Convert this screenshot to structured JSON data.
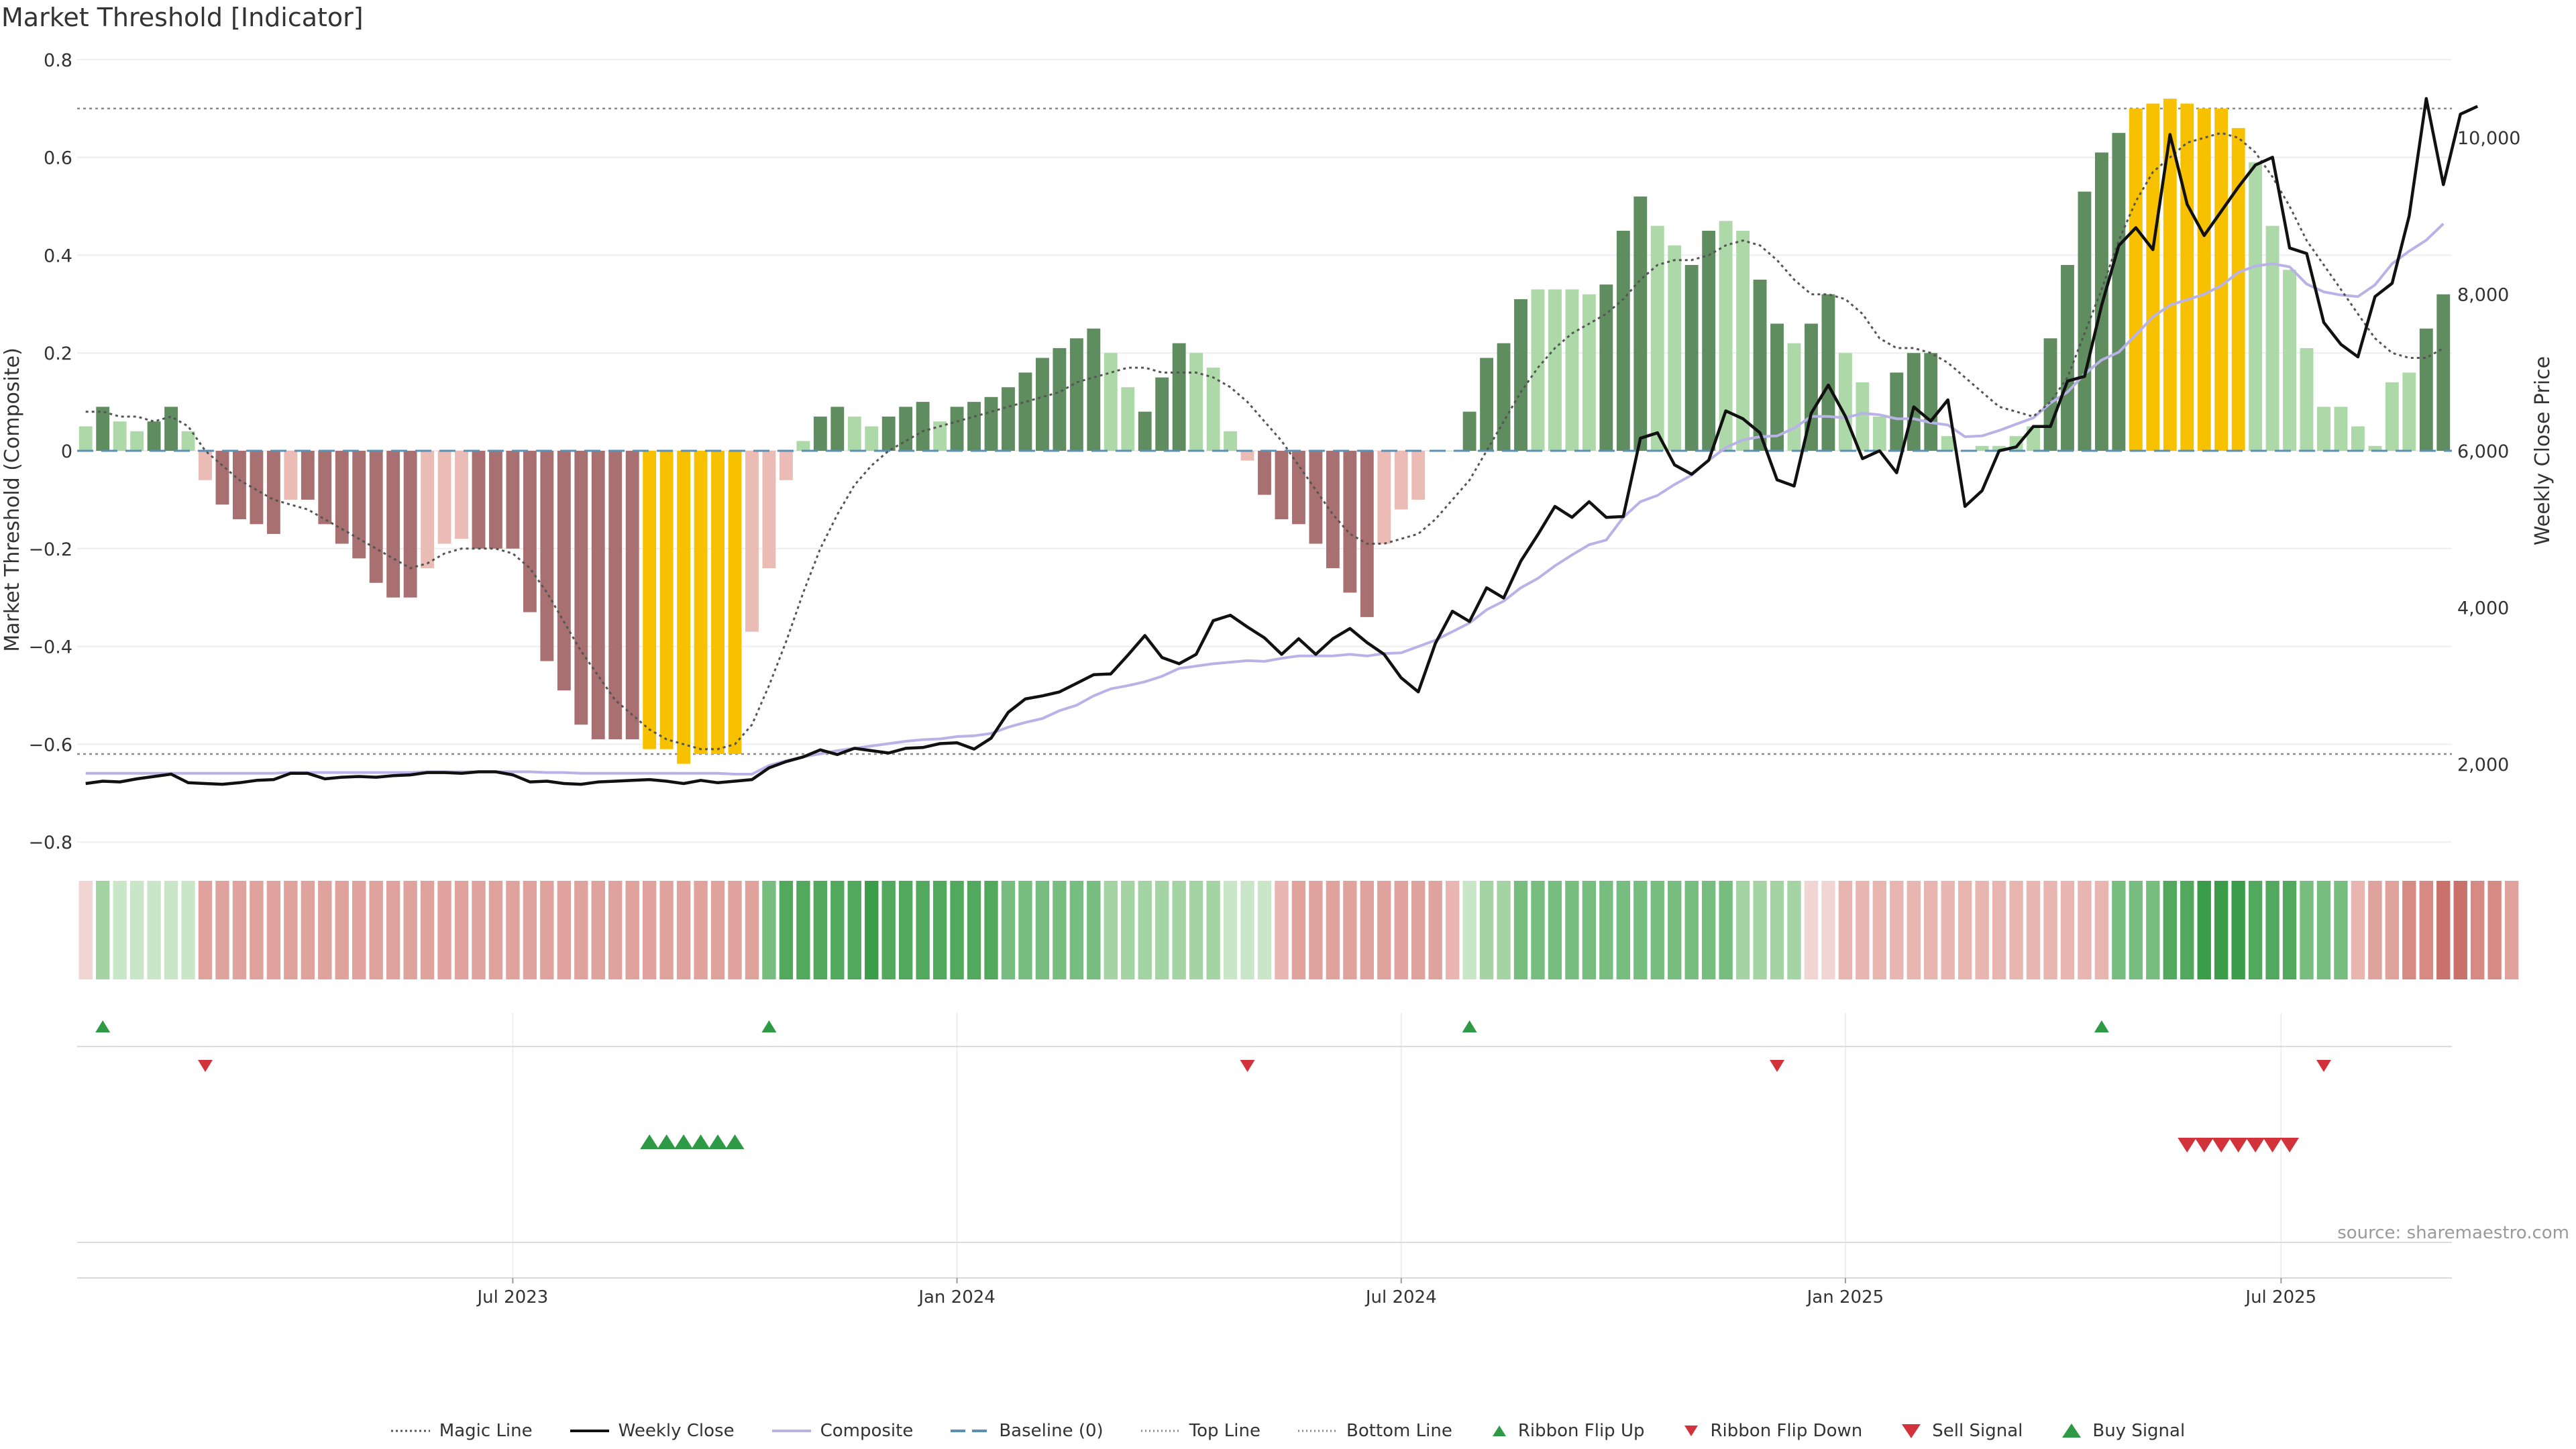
{
  "chart_data": {
    "type": "bar",
    "title": "Market Threshold [Indicator]",
    "ylabel": "Market Threshold (Composite)",
    "y2label": "Weekly Close Price",
    "ylim": [
      -0.8,
      0.8
    ],
    "y2lim": [
      1000,
      11000
    ],
    "yticks": [
      0.8,
      0.6,
      0.4,
      0.2,
      0,
      -0.2,
      -0.4,
      -0.6,
      -0.8
    ],
    "ytick_labels": [
      "0.8",
      "0.6",
      "0.4",
      "0.2",
      "0",
      "−0.2",
      "−0.4",
      "−0.6",
      "−0.8"
    ],
    "y2ticks": [
      10000,
      8000,
      6000,
      4000,
      2000
    ],
    "y2tick_labels": [
      "10,000",
      "8,000",
      "6,000",
      "4,000",
      "2,000"
    ],
    "xticks": [
      "Jul 2023",
      "Jan 2024",
      "Jul 2024",
      "Jan 2025",
      "Jul 2025"
    ],
    "xtick_weeks": [
      25.5,
      51.5,
      77.5,
      103.5,
      129
    ],
    "top_line": 0.7,
    "bottom_line": -0.62,
    "composite": [
      0.05,
      0.09,
      0.06,
      0.04,
      0.06,
      0.09,
      0.04,
      -0.06,
      -0.11,
      -0.14,
      -0.15,
      -0.17,
      -0.1,
      -0.1,
      -0.15,
      -0.19,
      -0.22,
      -0.27,
      -0.3,
      -0.3,
      -0.24,
      -0.19,
      -0.18,
      -0.2,
      -0.2,
      -0.2,
      -0.33,
      -0.43,
      -0.49,
      -0.56,
      -0.59,
      -0.59,
      -0.59,
      -0.61,
      -0.61,
      -0.64,
      -0.62,
      -0.62,
      -0.62,
      -0.37,
      -0.24,
      -0.06,
      0.02,
      0.07,
      0.09,
      0.07,
      0.05,
      0.07,
      0.09,
      0.1,
      0.06,
      0.09,
      0.1,
      0.11,
      0.13,
      0.16,
      0.19,
      0.21,
      0.23,
      0.25,
      0.2,
      0.13,
      0.08,
      0.15,
      0.22,
      0.2,
      0.17,
      0.04,
      -0.02,
      -0.09,
      -0.14,
      -0.15,
      -0.19,
      -0.24,
      -0.29,
      -0.34,
      -0.19,
      -0.12,
      -0.1,
      0.0,
      0.0,
      0.08,
      0.19,
      0.22,
      0.31,
      0.33,
      0.33,
      0.33,
      0.32,
      0.34,
      0.45,
      0.52,
      0.46,
      0.42,
      0.38,
      0.45,
      0.47,
      0.45,
      0.35,
      0.26,
      0.22,
      0.26,
      0.32,
      0.2,
      0.14,
      0.07,
      0.16,
      0.2,
      0.2,
      0.03,
      0.0,
      0.01,
      0.01,
      0.03,
      0.05,
      0.23,
      0.38,
      0.53,
      0.61,
      0.65,
      0.7,
      0.71,
      0.72,
      0.71,
      0.7,
      0.7,
      0.66,
      0.59,
      0.46,
      0.37,
      0.21,
      0.09,
      0.09,
      0.05,
      0.01,
      0.14,
      0.16,
      0.25,
      0.32
    ],
    "bar_class": [
      "L",
      "D",
      "L",
      "L",
      "D",
      "D",
      "L",
      "L",
      "D",
      "D",
      "D",
      "D",
      "L",
      "D",
      "D",
      "D",
      "D",
      "D",
      "D",
      "D",
      "L",
      "L",
      "L",
      "D",
      "D",
      "D",
      "D",
      "D",
      "D",
      "D",
      "D",
      "D",
      "D",
      "Y",
      "Y",
      "Y",
      "Y",
      "Y",
      "Y",
      "L",
      "L",
      "L",
      "L",
      "D",
      "D",
      "L",
      "L",
      "D",
      "D",
      "D",
      "L",
      "D",
      "D",
      "D",
      "D",
      "D",
      "D",
      "D",
      "D",
      "D",
      "L",
      "L",
      "D",
      "D",
      "D",
      "L",
      "L",
      "L",
      "L",
      "D",
      "D",
      "D",
      "D",
      "D",
      "D",
      "D",
      "L",
      "L",
      "L",
      "L",
      "L",
      "D",
      "D",
      "D",
      "D",
      "L",
      "L",
      "L",
      "L",
      "D",
      "D",
      "D",
      "L",
      "L",
      "D",
      "D",
      "L",
      "L",
      "D",
      "D",
      "L",
      "D",
      "D",
      "L",
      "L",
      "L",
      "D",
      "D",
      "D",
      "L",
      "L",
      "L",
      "L",
      "L",
      "L",
      "D",
      "D",
      "D",
      "D",
      "D",
      "Y",
      "Y",
      "Y",
      "Y",
      "Y",
      "Y",
      "Y",
      "L",
      "L",
      "L",
      "L",
      "L",
      "L",
      "L",
      "L",
      "L",
      "L",
      "D",
      "D",
      "D",
      "D"
    ],
    "magic_line": [
      0.08,
      0.08,
      0.07,
      0.07,
      0.06,
      0.07,
      0.05,
      0.0,
      -0.03,
      -0.06,
      -0.08,
      -0.1,
      -0.11,
      -0.12,
      -0.14,
      -0.16,
      -0.18,
      -0.2,
      -0.22,
      -0.24,
      -0.23,
      -0.21,
      -0.2,
      -0.2,
      -0.2,
      -0.21,
      -0.24,
      -0.29,
      -0.35,
      -0.41,
      -0.46,
      -0.51,
      -0.54,
      -0.57,
      -0.59,
      -0.6,
      -0.61,
      -0.61,
      -0.6,
      -0.56,
      -0.48,
      -0.39,
      -0.29,
      -0.2,
      -0.13,
      -0.07,
      -0.03,
      0.0,
      0.02,
      0.04,
      0.05,
      0.06,
      0.07,
      0.08,
      0.09,
      0.1,
      0.11,
      0.12,
      0.14,
      0.15,
      0.16,
      0.17,
      0.17,
      0.16,
      0.16,
      0.16,
      0.15,
      0.13,
      0.1,
      0.06,
      0.02,
      -0.03,
      -0.08,
      -0.13,
      -0.17,
      -0.19,
      -0.19,
      -0.18,
      -0.17,
      -0.14,
      -0.1,
      -0.06,
      0.0,
      0.06,
      0.12,
      0.17,
      0.21,
      0.24,
      0.26,
      0.28,
      0.31,
      0.35,
      0.38,
      0.39,
      0.39,
      0.4,
      0.42,
      0.43,
      0.42,
      0.39,
      0.35,
      0.32,
      0.32,
      0.31,
      0.28,
      0.23,
      0.21,
      0.21,
      0.2,
      0.18,
      0.15,
      0.12,
      0.09,
      0.08,
      0.07,
      0.1,
      0.15,
      0.24,
      0.33,
      0.43,
      0.51,
      0.57,
      0.6,
      0.63,
      0.64,
      0.65,
      0.64,
      0.61,
      0.56,
      0.5,
      0.43,
      0.38,
      0.33,
      0.28,
      0.23,
      0.2,
      0.19,
      0.19,
      0.21
    ],
    "weekly_close": [
      1750,
      1780,
      1770,
      1810,
      1840,
      1870,
      1760,
      1750,
      1740,
      1760,
      1790,
      1800,
      1880,
      1880,
      1810,
      1830,
      1840,
      1830,
      1850,
      1860,
      1890,
      1890,
      1880,
      1900,
      1900,
      1860,
      1770,
      1780,
      1750,
      1740,
      1770,
      1780,
      1790,
      1800,
      1780,
      1750,
      1790,
      1760,
      1780,
      1800,
      1950,
      2030,
      2090,
      2180,
      2120,
      2200,
      2170,
      2140,
      2200,
      2210,
      2260,
      2270,
      2190,
      2330,
      2660,
      2830,
      2870,
      2920,
      3030,
      3140,
      3150,
      3390,
      3640,
      3360,
      3280,
      3400,
      3830,
      3900,
      3750,
      3610,
      3400,
      3600,
      3400,
      3600,
      3730,
      3550,
      3400,
      3100,
      2920,
      3540,
      3950,
      3820,
      4250,
      4120,
      4590,
      4930,
      5290,
      5150,
      5350,
      5150,
      5160,
      6160,
      6230,
      5820,
      5700,
      5880,
      6510,
      6410,
      6230,
      5630,
      5550,
      6480,
      6840,
      6440,
      5900,
      6000,
      5720,
      6560,
      6380,
      6650,
      5290,
      5490,
      6000,
      6050,
      6310,
      6310,
      6890,
      6950,
      7860,
      8620,
      8850,
      8570,
      10040,
      9150,
      8750,
      9060,
      9370,
      9650,
      9750,
      8590,
      8520,
      7640,
      7360,
      7200,
      7970,
      8140,
      9000,
      10500,
      9400,
      10300,
      10400
    ],
    "composite_ma": [
      1880,
      1880,
      1880,
      1880,
      1880,
      1880,
      1880,
      1880,
      1880,
      1880,
      1880,
      1880,
      1890,
      1890,
      1890,
      1890,
      1890,
      1890,
      1890,
      1890,
      1900,
      1900,
      1900,
      1900,
      1900,
      1900,
      1900,
      1890,
      1890,
      1880,
      1880,
      1880,
      1880,
      1880,
      1880,
      1880,
      1880,
      1880,
      1870,
      1870,
      1980,
      2040,
      2090,
      2130,
      2170,
      2200,
      2230,
      2260,
      2290,
      2310,
      2320,
      2350,
      2360,
      2390,
      2470,
      2530,
      2580,
      2680,
      2750,
      2870,
      2960,
      3000,
      3050,
      3120,
      3220,
      3250,
      3280,
      3300,
      3320,
      3310,
      3350,
      3380,
      3380,
      3380,
      3400,
      3380,
      3410,
      3420,
      3500,
      3580,
      3690,
      3800,
      3970,
      4080,
      4250,
      4370,
      4530,
      4670,
      4800,
      4860,
      5150,
      5350,
      5430,
      5570,
      5690,
      5880,
      6040,
      6140,
      6180,
      6190,
      6290,
      6440,
      6440,
      6420,
      6480,
      6460,
      6410,
      6410,
      6360,
      6330,
      6180,
      6190,
      6260,
      6340,
      6420,
      6610,
      6750,
      6980,
      7160,
      7260,
      7480,
      7710,
      7860,
      7930,
      8000,
      8110,
      8280,
      8360,
      8390,
      8350,
      8130,
      8030,
      7990,
      7970,
      8120,
      8390,
      8550,
      8690,
      8900
    ],
    "ribbon": [
      -1,
      2,
      1,
      1,
      1,
      1,
      1,
      -3,
      -3,
      -3,
      -3,
      -3,
      -3,
      -3,
      -3,
      -3,
      -3,
      -3,
      -3,
      -3,
      -3,
      -3,
      -3,
      -3,
      -3,
      -3,
      -3,
      -3,
      -3,
      -3,
      -3,
      -3,
      -3,
      -3,
      -3,
      -3,
      -3,
      -3,
      -3,
      -3,
      3,
      4,
      4,
      4,
      4,
      4,
      5,
      4,
      4,
      4,
      4,
      4,
      4,
      4,
      3,
      3,
      3,
      3,
      3,
      3,
      2,
      2,
      2,
      2,
      2,
      2,
      2,
      1,
      1,
      1,
      -2,
      -3,
      -3,
      -3,
      -3,
      -3,
      -3,
      -3,
      -3,
      -3,
      -2,
      1,
      2,
      2,
      3,
      3,
      3,
      3,
      3,
      3,
      3,
      3,
      3,
      3,
      3,
      3,
      3,
      2,
      2,
      2,
      2,
      -1,
      -1,
      -2,
      -2,
      -2,
      -2,
      -2,
      -2,
      -2,
      -2,
      -2,
      -2,
      -2,
      -2,
      -2,
      -2,
      -2,
      -2,
      3,
      3,
      3,
      4,
      4,
      5,
      5,
      5,
      4,
      4,
      4,
      3,
      3,
      3,
      -2,
      -3,
      -3,
      -4,
      -4,
      -5,
      -5,
      -4,
      -4,
      -3
    ],
    "ribbon_flip_up": [
      1,
      40,
      81,
      118
    ],
    "ribbon_flip_down": [
      7,
      68,
      99,
      131
    ],
    "buy_signal": [
      33,
      34,
      35,
      36,
      37,
      38
    ],
    "sell_signal": [
      123,
      124,
      125,
      126,
      127,
      128,
      129
    ],
    "legend": [
      "Magic Line",
      "Weekly Close",
      "Composite",
      "Baseline (0)",
      "Top Line",
      "Bottom Line",
      "Ribbon Flip Up",
      "Ribbon Flip Down",
      "Sell Signal",
      "Buy Signal"
    ],
    "source": "source: sharemaestro.com"
  },
  "colors": {
    "pos_dark": "#5f8d5f",
    "pos_light": "#add8a8",
    "neg_dark": "#a87070",
    "neg_light": "#ebbcb5",
    "extreme": "#f8c100",
    "black_line": "#111111",
    "composite_line": "#b9b2e6",
    "baseline": "#5b8fb4",
    "up": "#2f9a46",
    "down": "#d2323a"
  }
}
